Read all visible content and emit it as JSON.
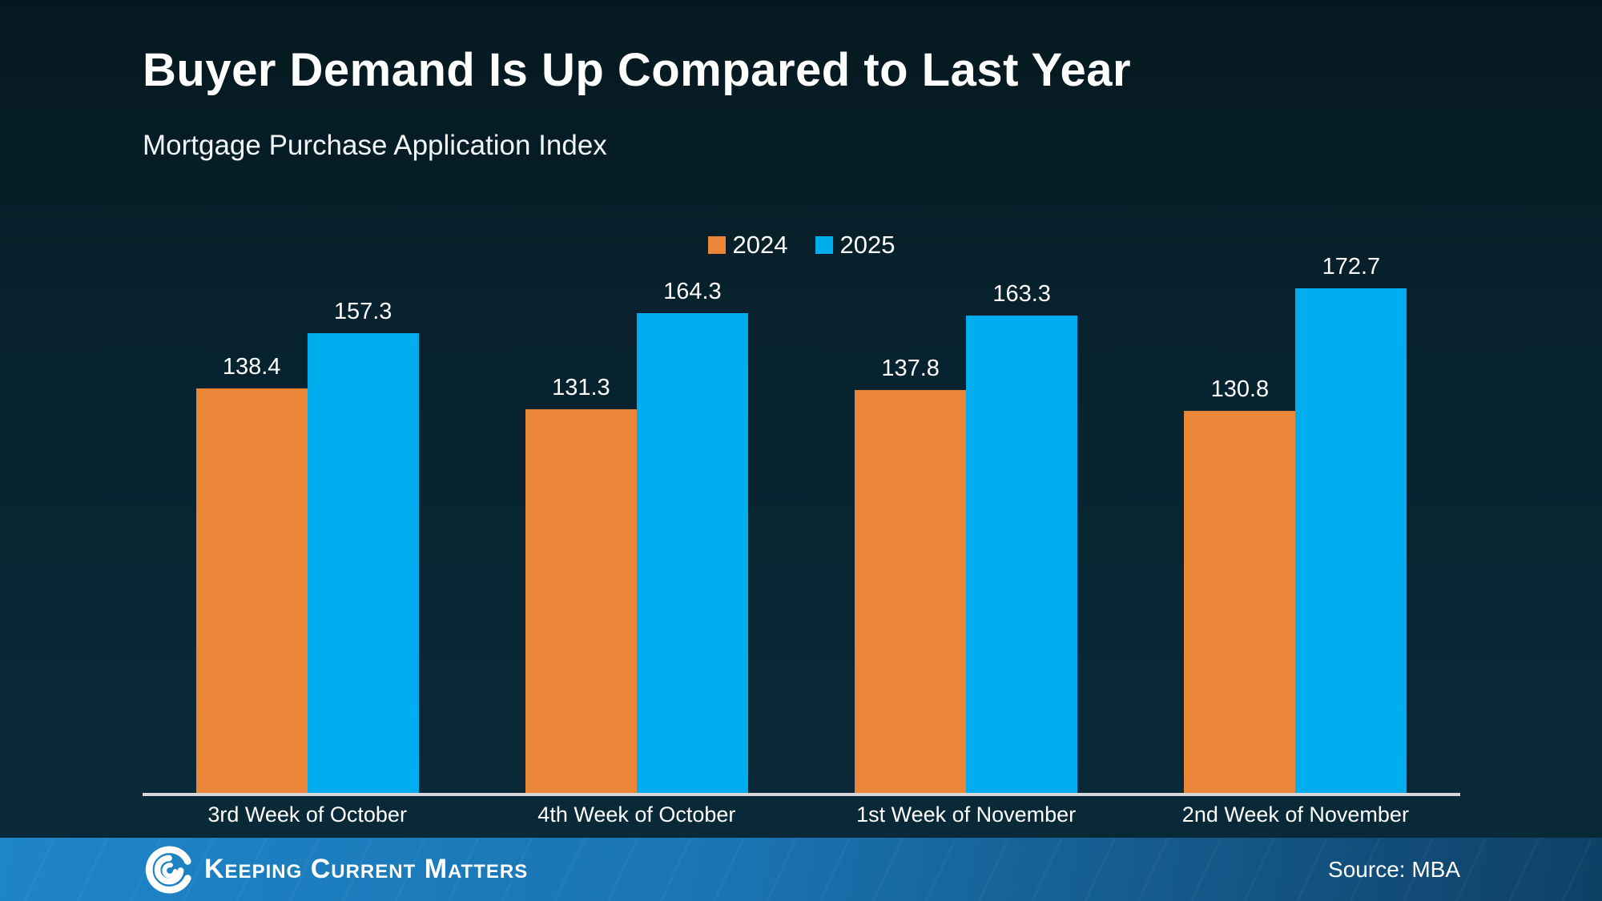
{
  "slide": {
    "title": "Buyer Demand Is Up Compared to Last Year",
    "subtitle": "Mortgage Purchase Application Index"
  },
  "chart_data": {
    "type": "bar",
    "title": "Buyer Demand Is Up Compared to Last Year",
    "subtitle": "Mortgage Purchase Application Index",
    "categories": [
      "3rd Week of October",
      "4th Week of October",
      "1st Week of November",
      "2nd Week of November"
    ],
    "series": [
      {
        "name": "2024",
        "color": "#EB8537",
        "values": [
          138.4,
          131.3,
          137.8,
          130.8
        ]
      },
      {
        "name": "2025",
        "color": "#00AEEF",
        "values": [
          157.3,
          164.3,
          163.3,
          172.7
        ]
      }
    ],
    "ylim": [
      0,
      180
    ],
    "xlabel": "",
    "ylabel": "",
    "grid": false,
    "y_axis_visible": false,
    "legend_position": "top-center",
    "value_labels": true
  },
  "footer": {
    "brand": "Keeping Current Matters",
    "logo_icon": "kcm-spiral-logo",
    "source": "Source: MBA",
    "gradient_left": "#1E85C8",
    "gradient_right": "#0F4066"
  },
  "colors": {
    "background_top": "#06181F",
    "background_bottom": "#0A2A39",
    "series_2024": "#EB8537",
    "series_2025": "#00AEEF",
    "axis_line": "#D8D8D8",
    "text": "#FFFFFF"
  }
}
